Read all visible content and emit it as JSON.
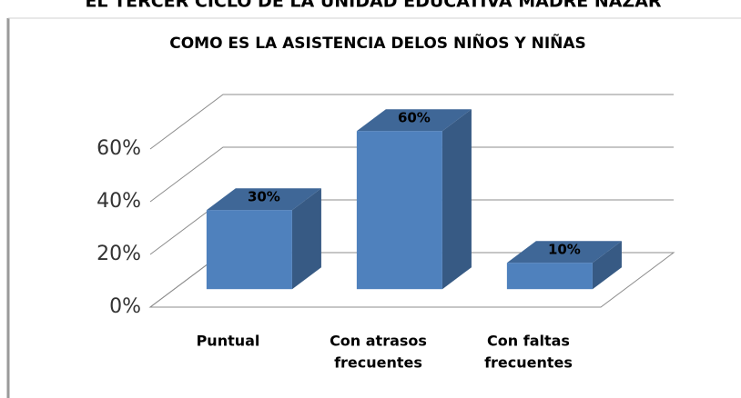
{
  "heading": "EL TERCER CICLO DE LA UNIDAD EDUCATIVA MADRE NAZAR",
  "chart_data": {
    "type": "bar3d",
    "title": "COMO ES LA ASISTENCIA DELOS NIÑOS Y NIÑAS",
    "categories": [
      [
        "Puntual"
      ],
      [
        "Con atrasos",
        "frecuentes"
      ],
      [
        "Con faltas",
        "frecuentes"
      ]
    ],
    "values": [
      30,
      60,
      10
    ],
    "value_labels": [
      "30%",
      "60%",
      "10%"
    ],
    "color": "#4f81bd",
    "ylim": [
      0,
      60
    ],
    "yticks": [
      {
        "value": 0,
        "label": "0%"
      },
      {
        "value": 20,
        "label": "20%"
      },
      {
        "value": 40,
        "label": "40%"
      },
      {
        "value": 60,
        "label": "60%"
      }
    ],
    "grid": true
  }
}
